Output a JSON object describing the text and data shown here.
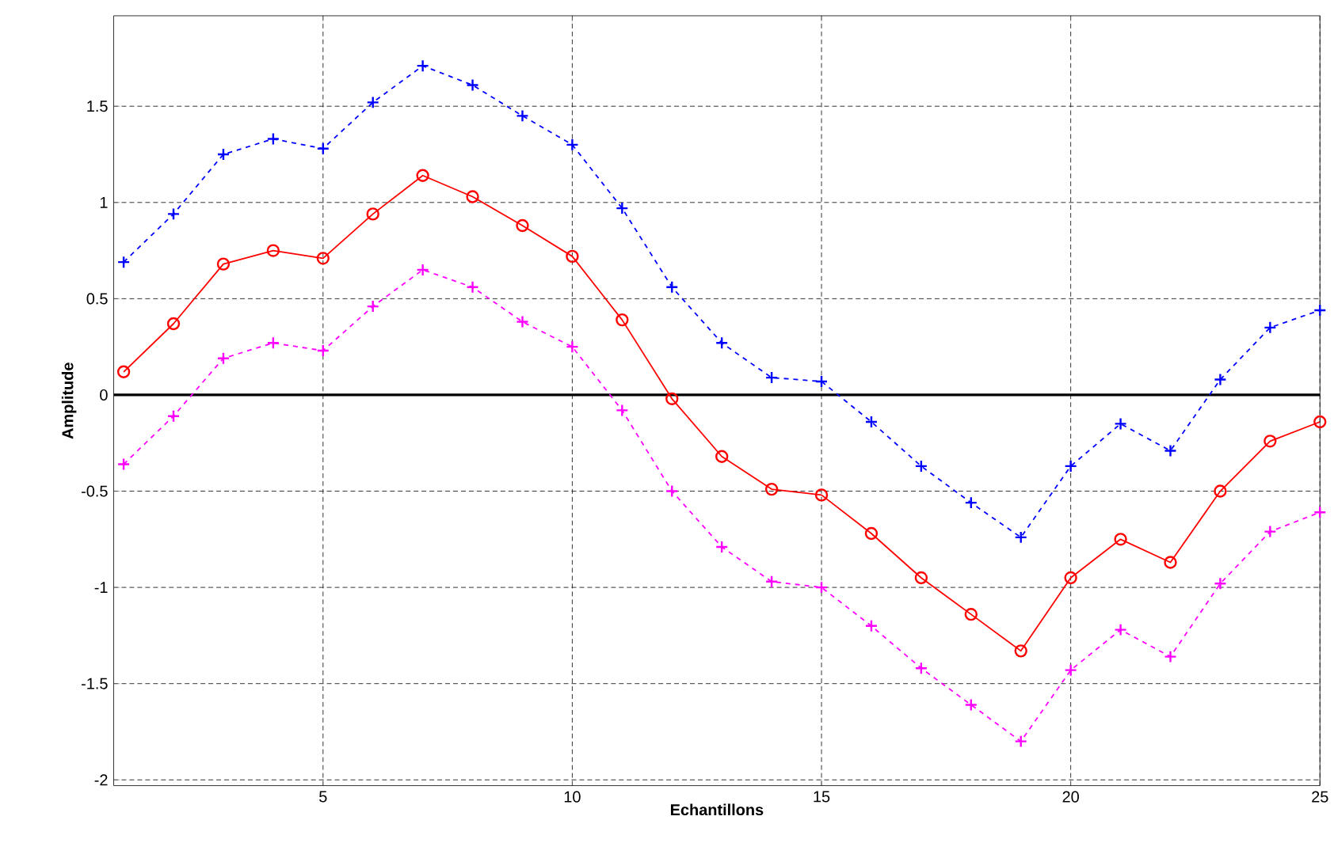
{
  "chart_data": {
    "type": "line",
    "xlabel": "Echantillons",
    "ylabel": "Amplitude",
    "x": [
      1,
      2,
      3,
      4,
      5,
      6,
      7,
      8,
      9,
      10,
      11,
      12,
      13,
      14,
      15,
      16,
      17,
      18,
      19,
      20,
      21,
      22,
      23,
      24,
      25
    ],
    "series": [
      {
        "color": "#0000ff",
        "marker": "cross",
        "line_style": "dashed",
        "values": [
          0.69,
          0.94,
          1.25,
          1.33,
          1.28,
          1.52,
          1.71,
          1.61,
          1.45,
          1.3,
          0.97,
          0.56,
          0.27,
          0.09,
          0.07,
          -0.14,
          -0.37,
          -0.56,
          -0.74,
          -0.37,
          -0.15,
          -0.29,
          0.08,
          0.35,
          0.44
        ]
      },
      {
        "color": "#ff0000",
        "marker": "circle",
        "line_style": "solid",
        "values": [
          0.12,
          0.37,
          0.68,
          0.75,
          0.71,
          0.94,
          1.14,
          1.03,
          0.88,
          0.72,
          0.39,
          -0.02,
          -0.32,
          -0.49,
          -0.52,
          -0.72,
          -0.95,
          -1.14,
          -1.33,
          -0.95,
          -0.75,
          -0.87,
          -0.5,
          -0.24,
          -0.14
        ]
      },
      {
        "color": "#ff00ff",
        "marker": "cross",
        "line_style": "dashed",
        "values": [
          -0.36,
          -0.11,
          0.19,
          0.27,
          0.23,
          0.46,
          0.65,
          0.56,
          0.38,
          0.25,
          -0.08,
          -0.5,
          -0.79,
          -0.97,
          -1.0,
          -1.2,
          -1.42,
          -1.61,
          -1.8,
          -1.43,
          -1.22,
          -1.36,
          -0.98,
          -0.71,
          -0.61
        ]
      }
    ],
    "xlim": [
      0.8,
      25
    ],
    "ylim": [
      -2.03,
      1.97
    ],
    "xticks": [
      5,
      10,
      15,
      20,
      25
    ],
    "yticks": [
      -2,
      -1.5,
      -1,
      -0.5,
      0,
      0.5,
      1,
      1.5
    ],
    "ref_lines": [
      {
        "axis": "y",
        "value": 0,
        "color": "#000000"
      }
    ],
    "grid": true
  }
}
